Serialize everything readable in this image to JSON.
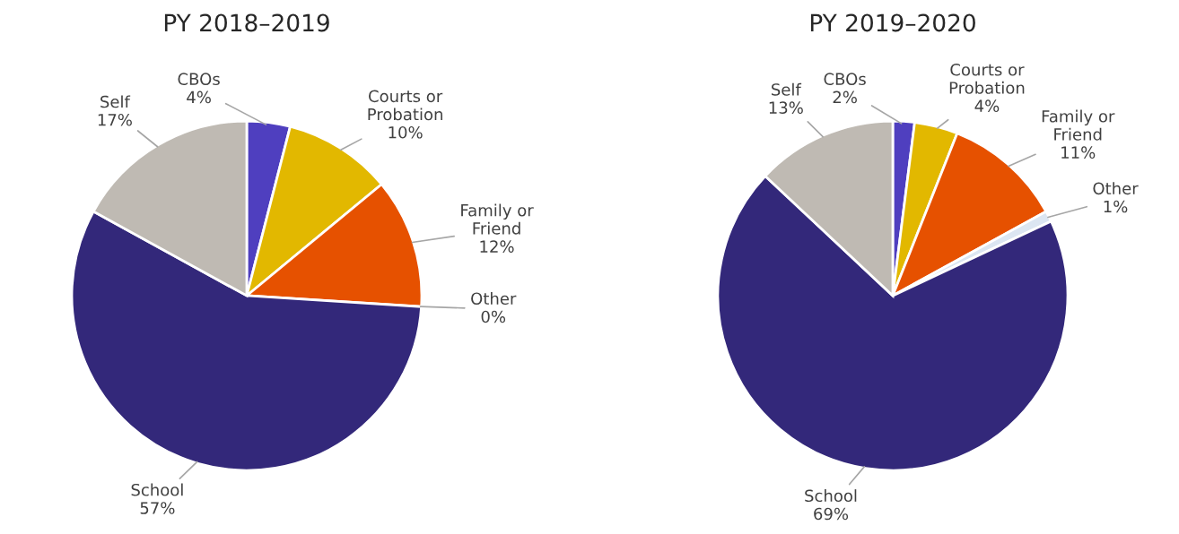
{
  "chart_data": [
    {
      "type": "pie",
      "title": "PY 2018–2019",
      "categories": [
        "CBOs",
        "Courts or\nProbation",
        "Family or\nFriend",
        "Other",
        "School",
        "Self"
      ],
      "values": [
        4,
        10,
        12,
        0,
        57,
        17
      ],
      "value_labels": [
        "4%",
        "10%",
        "12%",
        "0%",
        "57%",
        "17%"
      ],
      "colors": [
        "#4f3fbf",
        "#e2b800",
        "#e65100",
        "#dce6f2",
        "#33287a",
        "#bfbab3"
      ]
    },
    {
      "type": "pie",
      "title": "PY 2019–2020",
      "categories": [
        "CBOs",
        "Courts or\nProbation",
        "Family or\nFriend",
        "Other",
        "School",
        "Self"
      ],
      "values": [
        2,
        4,
        11,
        1,
        69,
        13
      ],
      "value_labels": [
        "2%",
        "4%",
        "11%",
        "1%",
        "69%",
        "13%"
      ],
      "colors": [
        "#4f3fbf",
        "#e2b800",
        "#e65100",
        "#dce6f2",
        "#33287a",
        "#bfbab3"
      ]
    }
  ]
}
